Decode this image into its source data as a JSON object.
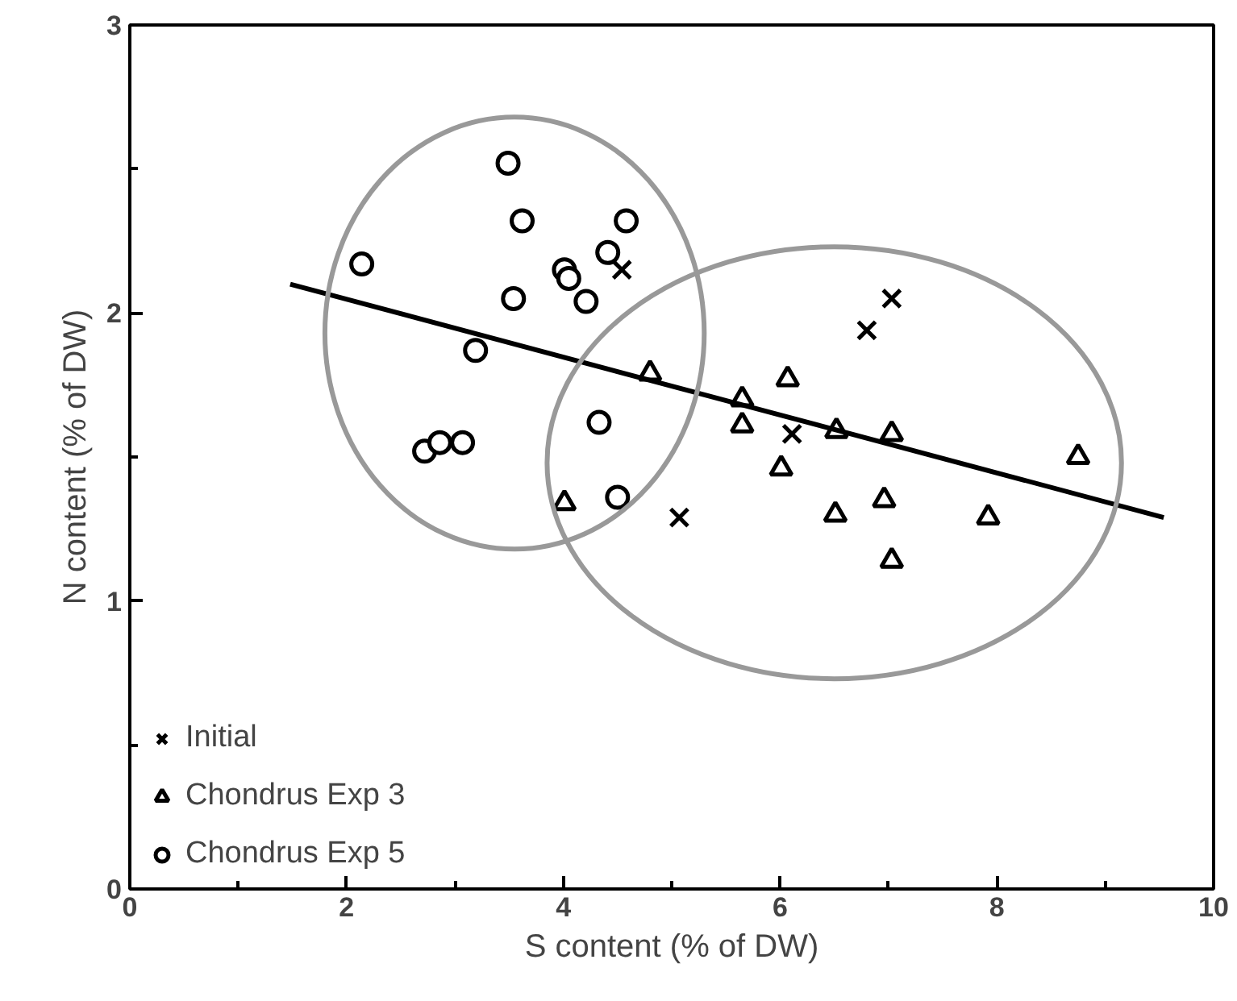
{
  "chart_data": {
    "type": "scatter",
    "xlabel": "S content (% of DW)",
    "ylabel": "N content (% of DW)",
    "xlim": [
      0,
      10
    ],
    "ylim": [
      0,
      3
    ],
    "xticks": [
      0,
      2,
      4,
      6,
      8,
      10
    ],
    "yticks": [
      0,
      1,
      2,
      3
    ],
    "grid": false,
    "legend": "bottom left",
    "series": [
      {
        "name": "Initial",
        "marker": "cross",
        "color": "#000000",
        "x": [
          4.54,
          6.8,
          7.03,
          6.11,
          5.07
        ],
        "values": [
          2.15,
          1.94,
          2.05,
          1.58,
          1.29
        ]
      },
      {
        "name": "Chondrus Exp 3",
        "marker": "triangle",
        "color": "#000000",
        "x": [
          4.8,
          5.65,
          5.65,
          6.07,
          6.01,
          6.52,
          7.03,
          8.75,
          6.96,
          6.51,
          7.92,
          7.03,
          4.01
        ],
        "values": [
          1.79,
          1.7,
          1.61,
          1.77,
          1.46,
          1.59,
          1.58,
          1.5,
          1.35,
          1.3,
          1.29,
          1.14,
          1.34
        ]
      },
      {
        "name": "Chondrus Exp 5",
        "marker": "circle",
        "color": "#000000",
        "x": [
          3.49,
          3.62,
          4.58,
          4.41,
          4.01,
          4.05,
          4.21,
          3.54,
          2.14,
          3.19,
          2.72,
          2.86,
          3.07,
          4.33,
          4.5
        ],
        "values": [
          2.52,
          2.32,
          2.32,
          2.21,
          2.15,
          2.12,
          2.04,
          2.05,
          2.17,
          1.87,
          1.52,
          1.55,
          1.55,
          1.62,
          1.36
        ]
      },
      {
        "type": "line",
        "color": "#000000",
        "x": [
          1.48,
          9.54
        ],
        "values": [
          2.1,
          1.29
        ]
      }
    ]
  }
}
